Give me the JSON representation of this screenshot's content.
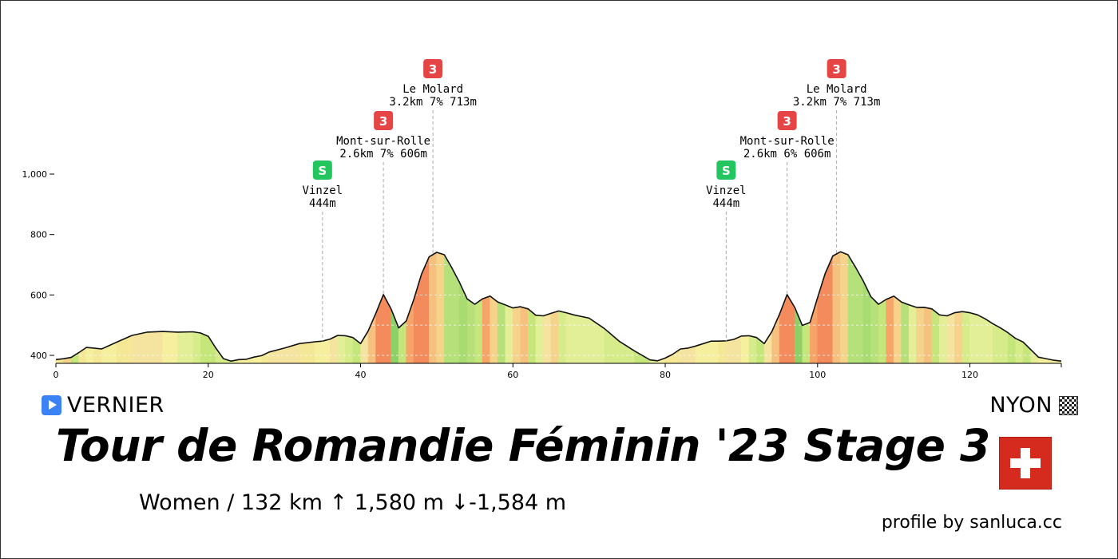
{
  "chart_data": {
    "type": "area",
    "title": "Tour de Romandie Féminin '23 Stage 3",
    "xlim": [
      0,
      132
    ],
    "ylim": [
      380,
      1000
    ],
    "x_ticks": [
      0,
      20,
      40,
      60,
      80,
      100,
      120
    ],
    "x_tick_labels": [
      "0",
      "20",
      "40",
      "60",
      "80",
      "100",
      "120"
    ],
    "y_ticks": [
      400,
      600,
      800,
      1000
    ],
    "y_tick_labels": [
      "400",
      "600",
      "800",
      "1,000"
    ],
    "profile": {
      "x": [
        0,
        1,
        2,
        3,
        4,
        5,
        6,
        8,
        10,
        12,
        14,
        16,
        18,
        19,
        20,
        21,
        22,
        23,
        24,
        25,
        26,
        27,
        28,
        30,
        32,
        34,
        35,
        36,
        37,
        38,
        39,
        40,
        41,
        42,
        43,
        44,
        45,
        46,
        47,
        48,
        49,
        50,
        51,
        52,
        53,
        54,
        55,
        56,
        57,
        58,
        59,
        60,
        61,
        62,
        63,
        64,
        65,
        66,
        67,
        68,
        70,
        72,
        74,
        76,
        78,
        79,
        80,
        81,
        82,
        83,
        84,
        85,
        86,
        87,
        88,
        89,
        90,
        91,
        92,
        93,
        94,
        95,
        96,
        97,
        98,
        99,
        100,
        101,
        102,
        103,
        104,
        105,
        106,
        107,
        108,
        109,
        110,
        111,
        112,
        113,
        114,
        115,
        116,
        117,
        118,
        119,
        120,
        121,
        122,
        123,
        124,
        125,
        126,
        127,
        128,
        129,
        130,
        131,
        132
      ],
      "elevation": [
        385,
        390,
        392,
        410,
        425,
        425,
        420,
        445,
        465,
        478,
        478,
        478,
        477,
        475,
        462,
        425,
        388,
        382,
        385,
        388,
        393,
        400,
        410,
        425,
        438,
        446,
        446,
        455,
        465,
        466,
        458,
        440,
        480,
        540,
        600,
        555,
        490,
        515,
        585,
        670,
        725,
        742,
        732,
        690,
        640,
        588,
        568,
        588,
        595,
        578,
        566,
        558,
        560,
        555,
        532,
        532,
        538,
        548,
        540,
        535,
        522,
        490,
        445,
        415,
        384,
        383,
        390,
        405,
        420,
        425,
        430,
        440,
        446,
        448,
        447,
        454,
        463,
        466,
        458,
        440,
        478,
        537,
        600,
        560,
        498,
        510,
        590,
        672,
        728,
        744,
        732,
        692,
        645,
        595,
        568,
        586,
        595,
        578,
        566,
        560,
        558,
        555,
        533,
        532,
        540,
        546,
        540,
        535,
        520,
        506,
        490,
        476,
        455,
        445,
        418,
        395,
        388,
        385,
        380
      ],
      "segment_colors": [
        "#f4e896",
        "#f5d38a",
        "#c5e67a",
        "#f4e896",
        "#f5ef9e",
        "#f4e896",
        "#f5ef9e",
        "#f4e896",
        "#f5e4a0",
        "#f5e4a0",
        "#f5ef9e",
        "#e3ef97",
        "#d6ec8a",
        "#c5e67a",
        "#c5e67a",
        "#d6ec8a",
        "#d6ec8a",
        "#e3ef97",
        "#f5ef9e",
        "#f5ef9e",
        "#f5ef9e",
        "#f4e896",
        "#f5e4a0",
        "#f5e4a0",
        "#f4e896",
        "#f5ef9e",
        "#f5ef9e",
        "#f5e4a0",
        "#e3ef97",
        "#d6ec8a",
        "#c5e67a",
        "#f5e4a0",
        "#f6c17f",
        "#f38b5c",
        "#f38b5c",
        "#8fcf68",
        "#c5e67a",
        "#f6a468",
        "#f38b5c",
        "#f38b5c",
        "#f6c17f",
        "#f5d38a",
        "#b5e07a",
        "#b5e07a",
        "#a8db70",
        "#b5e07a",
        "#c5e67a",
        "#f6a468",
        "#f5d38a",
        "#b5e07a",
        "#e3ef97",
        "#f5d38a",
        "#f6c17f",
        "#c5e67a",
        "#e3ef97",
        "#f5e4a0",
        "#f5d38a",
        "#d6ec8a",
        "#e3ef97",
        "#e3ef97",
        "#e3ef97",
        "#d6ec8a",
        "#d6ec8a",
        "#c5e67a",
        "#e3ef97",
        "#f5ef9e",
        "#f4e896",
        "#f4e896",
        "#f5e4a0",
        "#f5e4a0",
        "#f5ef9e",
        "#f5ef9e",
        "#f5ef9e",
        "#f4e896",
        "#f5e4a0",
        "#f5e4a0",
        "#f5ef9e",
        "#d6ec8a",
        "#c5e67a",
        "#f5e4a0",
        "#f6c17f",
        "#f38b5c",
        "#f38b5c",
        "#8fcf68",
        "#c5e67a",
        "#f6a468",
        "#f38b5c",
        "#f38b5c",
        "#f6c17f",
        "#f5d38a",
        "#b5e07a",
        "#b5e07a",
        "#a8db70",
        "#b5e07a",
        "#c5e67a",
        "#f6a468",
        "#f5d38a",
        "#b5e07a",
        "#e3ef97",
        "#f5d38a",
        "#f6c17f",
        "#c5e67a",
        "#e3ef97",
        "#f5e4a0",
        "#f5d38a",
        "#d6ec8a",
        "#e3ef97",
        "#e3ef97",
        "#e3ef97",
        "#d6ec8a",
        "#d6ec8a",
        "#c5e67a",
        "#d6ec8a",
        "#c5e67a",
        "#e3ef97",
        "#f5ef9e",
        "#f5ef9e",
        "#f5ef9e"
      ]
    },
    "climbs": [
      {
        "name": "Vinzel",
        "detail": "444m",
        "category": "S",
        "km": 35,
        "color": "#22c55e"
      },
      {
        "name": "Mont-sur-Rolle",
        "detail": "2.6km 7% 606m",
        "category": "3",
        "km": 43,
        "color": "#e64545"
      },
      {
        "name": "Le Molard",
        "detail": "3.2km 7% 713m",
        "category": "3",
        "km": 49.5,
        "color": "#e64545"
      },
      {
        "name": "Vinzel",
        "detail": "444m",
        "category": "S",
        "km": 88,
        "color": "#22c55e"
      },
      {
        "name": "Mont-sur-Rolle",
        "detail": "2.6km 6% 606m",
        "category": "3",
        "km": 96,
        "color": "#e64545"
      },
      {
        "name": "Le Molard",
        "detail": "3.2km 7% 713m",
        "category": "3",
        "km": 102.5,
        "color": "#e64545"
      }
    ]
  },
  "stage": {
    "start": "VERNIER",
    "finish": "NYON",
    "title": "Tour de Romandie Féminin '23 Stage 3",
    "subtitle": "Women / 132 km  ↑ 1,580 m  ↓-1,584 m",
    "credit": "profile by sanluca.cc",
    "flag_colors": {
      "red": "#d52b1e",
      "cross": "#ffffff"
    }
  }
}
